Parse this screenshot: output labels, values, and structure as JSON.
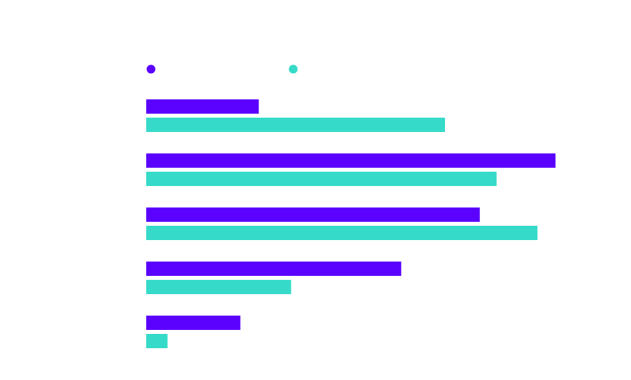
{
  "colors": {
    "series_a": "#5b02ff",
    "series_b": "#35dbc8",
    "background": "#ffffff"
  },
  "chart_data": {
    "type": "bar",
    "orientation": "horizontal",
    "title": "",
    "xlabel": "",
    "ylabel": "",
    "xlim": [
      0,
      100
    ],
    "grid": false,
    "legend_position": "top-left",
    "categories": [
      "",
      "",
      "",
      "",
      ""
    ],
    "series": [
      {
        "name": "",
        "color": "#5b02ff",
        "values": [
          27.5,
          100,
          81.5,
          62.3,
          23
        ]
      },
      {
        "name": "",
        "color": "#35dbc8",
        "values": [
          73,
          85.6,
          95.6,
          35.4,
          5.2
        ]
      }
    ]
  }
}
